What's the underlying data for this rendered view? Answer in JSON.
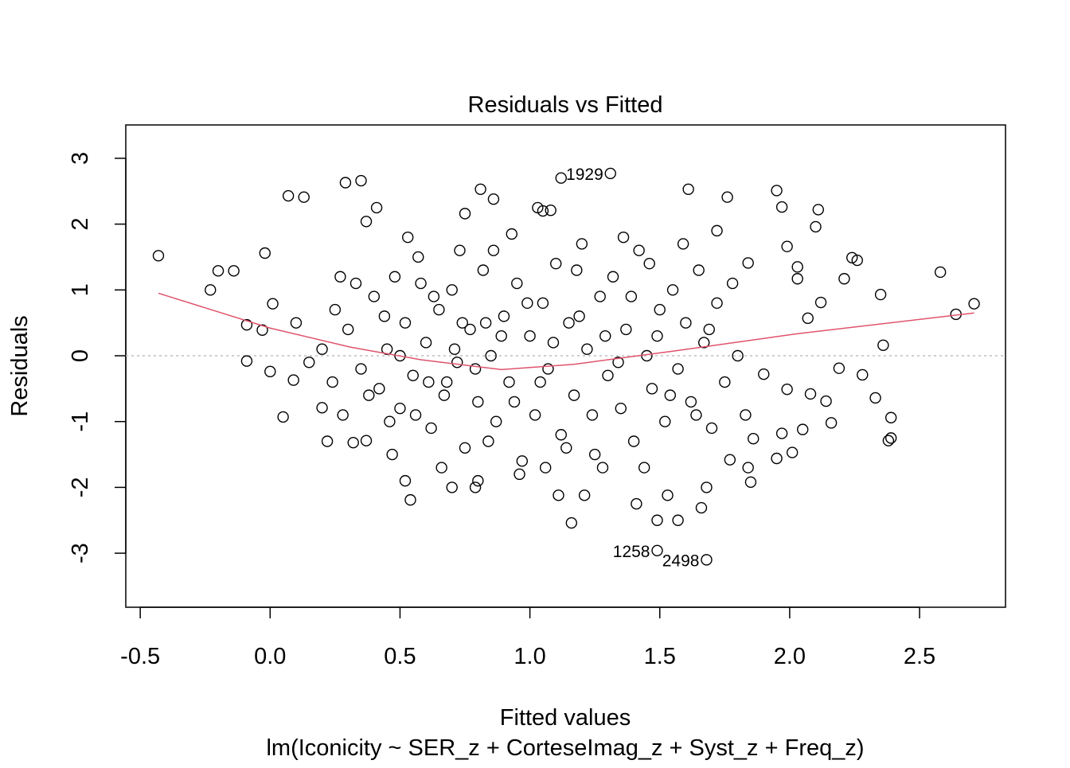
{
  "chart_data": {
    "type": "scatter",
    "title": "Residuals vs Fitted",
    "xlabel": "Fitted values",
    "ylabel": "Residuals",
    "subtitle": "lm(Iconicity ~ SER_z + CorteseImag_z + Syst_z + Freq_z)",
    "xlim": [
      -0.55,
      2.85
    ],
    "ylim": [
      -3.8,
      3.5
    ],
    "x_ticks": [
      -0.5,
      0.0,
      0.5,
      1.0,
      1.5,
      2.0,
      2.5
    ],
    "x_tick_labels": [
      "-0.5",
      "0.0",
      "0.5",
      "1.0",
      "1.5",
      "2.0",
      "2.5"
    ],
    "y_ticks": [
      -3,
      -2,
      -1,
      0,
      1,
      2,
      3
    ],
    "y_tick_labels": [
      "-3",
      "-2",
      "-1",
      "0",
      "1",
      "2",
      "3"
    ],
    "reference_line": {
      "y": 0,
      "style": "dotted",
      "color": "#bebebe"
    },
    "smooth_line": {
      "color": "#df536b",
      "x": [
        -0.43,
        0.0,
        0.31,
        0.58,
        0.89,
        1.17,
        1.57,
        2.02,
        2.71
      ],
      "y": [
        0.95,
        0.42,
        0.13,
        -0.06,
        -0.21,
        -0.13,
        0.08,
        0.33,
        0.65
      ]
    },
    "labeled_points": [
      {
        "label": "1929",
        "x": 1.31,
        "y": 2.77
      },
      {
        "label": "1258",
        "x": 1.49,
        "y": -2.96
      },
      {
        "label": "2498",
        "x": 1.68,
        "y": -3.1
      }
    ],
    "points": [
      [
        -0.43,
        1.52
      ],
      [
        -0.23,
        1.0
      ],
      [
        -0.2,
        1.29
      ],
      [
        -0.14,
        1.29
      ],
      [
        -0.09,
        0.47
      ],
      [
        -0.09,
        -0.08
      ],
      [
        -0.02,
        1.56
      ],
      [
        -0.03,
        0.39
      ],
      [
        0,
        -0.24
      ],
      [
        0.01,
        0.79
      ],
      [
        0.05,
        -0.93
      ],
      [
        0.07,
        2.43
      ],
      [
        0.13,
        2.41
      ],
      [
        0.09,
        -0.37
      ],
      [
        0.2,
        -0.79
      ],
      [
        0.22,
        -1.3
      ],
      [
        0.29,
        2.63
      ],
      [
        0.35,
        2.66
      ],
      [
        0.37,
        2.04
      ],
      [
        0.41,
        2.25
      ],
      [
        0.32,
        -1.32
      ],
      [
        0.37,
        -1.29
      ],
      [
        0.52,
        -1.9
      ],
      [
        0.54,
        -2.19
      ],
      [
        0.81,
        2.53
      ],
      [
        0.75,
        2.16
      ],
      [
        0.86,
        2.38
      ],
      [
        0.7,
        -2.0
      ],
      [
        0.8,
        -1.9
      ],
      [
        0.79,
        -2.0
      ],
      [
        0.93,
        1.85
      ],
      [
        1.03,
        2.25
      ],
      [
        1.05,
        2.2
      ],
      [
        1.08,
        2.21
      ],
      [
        1.12,
        2.7
      ],
      [
        1.16,
        -2.54
      ],
      [
        1.21,
        -2.12
      ],
      [
        1.11,
        -2.12
      ],
      [
        1.41,
        -2.25
      ],
      [
        1.49,
        -2.5
      ],
      [
        1.57,
        -2.5
      ],
      [
        1.53,
        -2.12
      ],
      [
        1.66,
        -2.31
      ],
      [
        1.61,
        2.53
      ],
      [
        1.76,
        2.41
      ],
      [
        1.95,
        2.51
      ],
      [
        1.97,
        2.26
      ],
      [
        2.11,
        2.22
      ],
      [
        2.1,
        1.96
      ],
      [
        2.24,
        1.49
      ],
      [
        2.26,
        1.45
      ],
      [
        2.58,
        1.27
      ],
      [
        2.64,
        0.63
      ],
      [
        2.71,
        0.79
      ],
      [
        2.36,
        0.16
      ],
      [
        2.35,
        0.93
      ],
      [
        2.19,
        -0.19
      ],
      [
        2.28,
        -0.29
      ],
      [
        2.33,
        -0.64
      ],
      [
        2.39,
        -0.94
      ],
      [
        2.38,
        -1.29
      ],
      [
        2.39,
        -1.25
      ],
      [
        2.16,
        -1.02
      ],
      [
        2.05,
        -1.12
      ],
      [
        2.01,
        -1.47
      ],
      [
        1.95,
        -1.56
      ],
      [
        1.85,
        -1.92
      ],
      [
        1.84,
        -1.7
      ],
      [
        1.77,
        -1.58
      ],
      [
        1.68,
        -2.0
      ],
      [
        1.86,
        -1.26
      ],
      [
        1.97,
        -1.18
      ],
      [
        2.14,
        -0.69
      ],
      [
        2.08,
        -0.58
      ],
      [
        1.99,
        -0.51
      ],
      [
        1.9,
        -0.28
      ],
      [
        2.03,
        1.17
      ],
      [
        2.03,
        1.35
      ],
      [
        2.07,
        0.57
      ],
      [
        2.12,
        0.81
      ],
      [
        2.21,
        1.17
      ],
      [
        1.99,
        1.66
      ],
      [
        1.84,
        1.41
      ],
      [
        1.72,
        1.9
      ],
      [
        0.3,
        0.4
      ],
      [
        0.35,
        -0.2
      ],
      [
        0.4,
        0.9
      ],
      [
        0.42,
        -0.5
      ],
      [
        0.45,
        0.1
      ],
      [
        0.48,
        1.2
      ],
      [
        0.5,
        -0.8
      ],
      [
        0.52,
        0.5
      ],
      [
        0.55,
        -0.3
      ],
      [
        0.57,
        1.5
      ],
      [
        0.6,
        0.2
      ],
      [
        0.62,
        -1.1
      ],
      [
        0.65,
        0.7
      ],
      [
        0.67,
        -0.6
      ],
      [
        0.7,
        1.0
      ],
      [
        0.72,
        -0.1
      ],
      [
        0.75,
        -1.4
      ],
      [
        0.77,
        0.4
      ],
      [
        0.8,
        -0.7
      ],
      [
        0.82,
        1.3
      ],
      [
        0.85,
        0.0
      ],
      [
        0.87,
        -1.0
      ],
      [
        0.9,
        0.6
      ],
      [
        0.92,
        -0.4
      ],
      [
        0.95,
        1.1
      ],
      [
        0.97,
        -1.6
      ],
      [
        1.0,
        0.3
      ],
      [
        1.02,
        -0.9
      ],
      [
        1.05,
        0.8
      ],
      [
        1.07,
        -0.2
      ],
      [
        1.1,
        1.4
      ],
      [
        1.12,
        -1.2
      ],
      [
        1.15,
        0.5
      ],
      [
        1.17,
        -0.6
      ],
      [
        1.2,
        1.7
      ],
      [
        1.22,
        0.1
      ],
      [
        1.25,
        -1.5
      ],
      [
        1.27,
        0.9
      ],
      [
        1.3,
        -0.3
      ],
      [
        1.32,
        1.2
      ],
      [
        1.35,
        -0.8
      ],
      [
        1.37,
        0.4
      ],
      [
        1.4,
        -1.3
      ],
      [
        1.42,
        1.6
      ],
      [
        1.45,
        0.0
      ],
      [
        1.47,
        -0.5
      ],
      [
        1.5,
        0.7
      ],
      [
        1.52,
        -1.0
      ],
      [
        1.55,
        1.0
      ],
      [
        1.57,
        -0.2
      ],
      [
        1.6,
        0.5
      ],
      [
        1.62,
        -0.7
      ],
      [
        1.65,
        1.3
      ],
      [
        1.67,
        0.2
      ],
      [
        1.7,
        -1.1
      ],
      [
        1.72,
        0.8
      ],
      [
        1.75,
        -0.4
      ],
      [
        1.78,
        1.1
      ],
      [
        1.8,
        0.0
      ],
      [
        1.83,
        -0.9
      ],
      [
        0.38,
        -0.6
      ],
      [
        0.44,
        0.6
      ],
      [
        0.5,
        0.0
      ],
      [
        0.56,
        -0.9
      ],
      [
        0.63,
        0.9
      ],
      [
        0.68,
        -0.4
      ],
      [
        0.74,
        0.5
      ],
      [
        0.79,
        -0.2
      ],
      [
        0.84,
        -1.3
      ],
      [
        0.89,
        0.3
      ],
      [
        0.94,
        -0.7
      ],
      [
        0.99,
        0.8
      ],
      [
        1.04,
        -0.4
      ],
      [
        1.09,
        0.2
      ],
      [
        1.14,
        -1.4
      ],
      [
        1.19,
        0.6
      ],
      [
        1.24,
        -0.9
      ],
      [
        1.29,
        0.3
      ],
      [
        1.34,
        -0.1
      ],
      [
        1.39,
        0.9
      ],
      [
        1.44,
        -1.7
      ],
      [
        1.49,
        0.3
      ],
      [
        1.54,
        -0.6
      ],
      [
        1.59,
        1.7
      ],
      [
        1.64,
        -0.9
      ],
      [
        1.69,
        0.4
      ],
      [
        0.25,
        0.7
      ],
      [
        0.28,
        -0.9
      ],
      [
        0.33,
        1.1
      ],
      [
        0.46,
        -1.0
      ],
      [
        0.58,
        1.1
      ],
      [
        0.66,
        -1.7
      ],
      [
        0.73,
        1.6
      ],
      [
        0.86,
        1.6
      ],
      [
        0.96,
        -1.8
      ],
      [
        1.06,
        -1.7
      ],
      [
        1.18,
        1.3
      ],
      [
        1.28,
        -1.7
      ],
      [
        1.36,
        1.8
      ],
      [
        1.46,
        1.4
      ],
      [
        0.2,
        0.1
      ],
      [
        0.15,
        -0.1
      ],
      [
        0.1,
        0.5
      ],
      [
        0.24,
        -0.4
      ],
      [
        0.27,
        1.2
      ],
      [
        0.47,
        -1.5
      ],
      [
        0.53,
        1.8
      ],
      [
        0.61,
        -0.4
      ],
      [
        0.71,
        0.1
      ],
      [
        0.83,
        0.5
      ]
    ]
  }
}
